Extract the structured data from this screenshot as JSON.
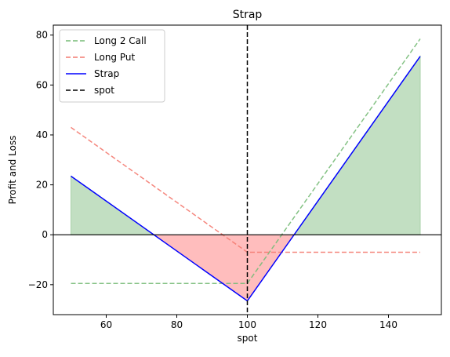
{
  "chart_data": {
    "type": "line",
    "title": "Strap",
    "xlabel": "spot",
    "ylabel": "Profit and Loss",
    "xlim": [
      45,
      155
    ],
    "ylim": [
      -32,
      84
    ],
    "xticks": [
      60,
      80,
      100,
      120,
      140
    ],
    "yticks": [
      -20,
      0,
      20,
      40,
      60,
      80
    ],
    "grid": false,
    "legend_position": "top-left",
    "spot": 100,
    "zero_line": 0,
    "fill_profit_color": "#c2dfc2",
    "fill_loss_color": "#ffbdbd",
    "series": [
      {
        "name": "Long 2 Call",
        "style": "dashed",
        "color": "#77bb77",
        "x": [
          50,
          100,
          149
        ],
        "y": [
          -19.5,
          -19.5,
          78.5
        ]
      },
      {
        "name": "Long Put",
        "style": "dashed",
        "color": "#f47a70",
        "x": [
          50,
          100,
          149
        ],
        "y": [
          43,
          -7,
          -7
        ]
      },
      {
        "name": "Strap",
        "style": "solid",
        "color": "#0000ff",
        "x": [
          50,
          100,
          149
        ],
        "y": [
          23.5,
          -26.5,
          71.5
        ]
      }
    ],
    "vline_legend": "spot"
  }
}
